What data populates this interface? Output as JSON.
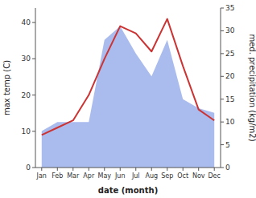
{
  "chart_data": {
    "type": "line",
    "categories": [
      "Jan",
      "Feb",
      "Mar",
      "Apr",
      "May",
      "Jun",
      "Jul",
      "Aug",
      "Sep",
      "Oct",
      "Nov",
      "Dec"
    ],
    "series": [
      {
        "type": "area",
        "axis": "y2",
        "color": "#aabbee",
        "values": [
          8,
          10,
          10,
          10,
          28,
          31,
          25,
          20,
          28,
          15,
          13,
          12
        ]
      },
      {
        "type": "line",
        "color": "#cc3333",
        "values": [
          9,
          11,
          13,
          20,
          30,
          39,
          37,
          32,
          41,
          28,
          16,
          13
        ]
      }
    ],
    "x_label": "date (month)",
    "y_label": "max temp (C)",
    "y2_label": "med. precipitation (kg/m2)",
    "ylim": [
      0,
      44
    ],
    "yticks": [
      0,
      10,
      20,
      30,
      40
    ],
    "y2lim": [
      0,
      35
    ],
    "y2ticks": [
      0,
      5,
      10,
      15,
      20,
      25,
      30,
      35
    ],
    "grid": false
  }
}
